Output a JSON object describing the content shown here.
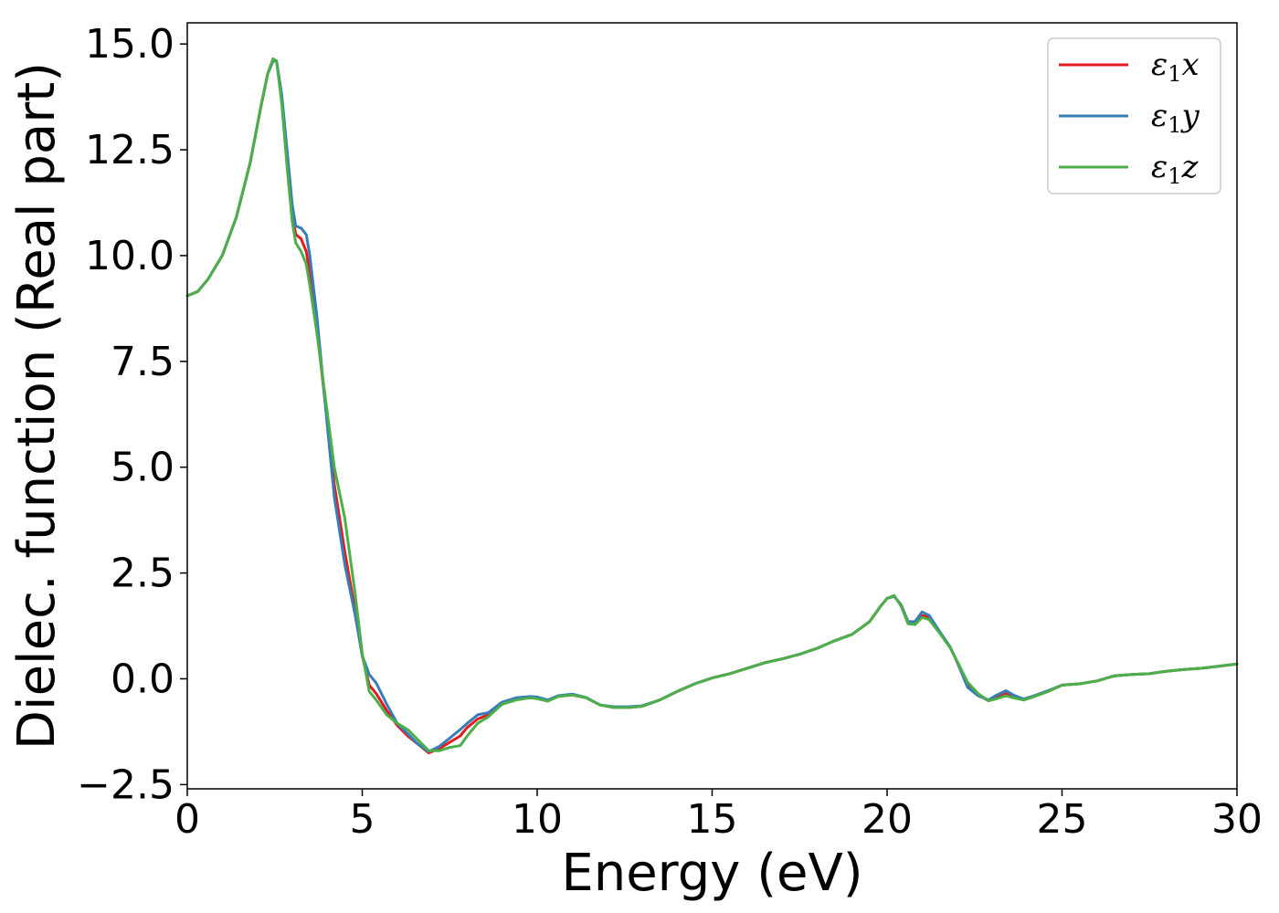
{
  "chart_data": {
    "type": "line",
    "title": "",
    "xlabel": "Energy (eV)",
    "ylabel": "Dielec. function (Real part)",
    "xlim": [
      0,
      30
    ],
    "ylim": [
      -2.6,
      15.5
    ],
    "xticks": [
      0,
      5,
      10,
      15,
      20,
      25,
      30
    ],
    "xtick_labels": [
      "0",
      "5",
      "10",
      "15",
      "20",
      "25",
      "30"
    ],
    "yticks": [
      -2.5,
      0.0,
      2.5,
      5.0,
      7.5,
      10.0,
      12.5,
      15.0
    ],
    "ytick_labels": [
      "−2.5",
      "0.0",
      "2.5",
      "5.0",
      "7.5",
      "10.0",
      "12.5",
      "15.0"
    ],
    "grid": false,
    "legend_position": "top-right",
    "series": [
      {
        "name": "ε₁x",
        "legend_base": "ε",
        "legend_sub": "1",
        "legend_suffix": "x",
        "color": "#e41a1c",
        "x": [
          0,
          0.3,
          0.6,
          1.0,
          1.4,
          1.8,
          2.1,
          2.3,
          2.45,
          2.55,
          2.7,
          2.85,
          3.0,
          3.1,
          3.25,
          3.4,
          3.5,
          3.7,
          4.0,
          4.2,
          4.5,
          4.8,
          5.0,
          5.2,
          5.4,
          5.7,
          6.0,
          6.3,
          6.6,
          6.9,
          7.2,
          7.5,
          7.8,
          8.0,
          8.3,
          8.6,
          9.0,
          9.4,
          9.8,
          10.0,
          10.3,
          10.6,
          11.0,
          11.4,
          11.8,
          12.2,
          12.6,
          13.0,
          13.5,
          14.0,
          14.5,
          15.0,
          15.5,
          16.0,
          16.5,
          17.0,
          17.5,
          18.0,
          18.5,
          19.0,
          19.5,
          19.8,
          20.0,
          20.2,
          20.4,
          20.6,
          20.8,
          21.0,
          21.2,
          21.5,
          21.8,
          22.0,
          22.3,
          22.6,
          22.9,
          23.1,
          23.4,
          23.6,
          23.9,
          24.2,
          24.6,
          25.0,
          25.5,
          26.0,
          26.5,
          27.0,
          27.5,
          28.0,
          28.5,
          29.0,
          29.5,
          30.0
        ],
        "y": [
          9.05,
          9.15,
          9.45,
          10.0,
          10.9,
          12.2,
          13.5,
          14.3,
          14.6,
          14.6,
          13.7,
          12.3,
          11.0,
          10.5,
          10.4,
          10.1,
          9.6,
          8.3,
          6.1,
          4.6,
          3.0,
          1.6,
          0.55,
          -0.15,
          -0.35,
          -0.75,
          -1.1,
          -1.35,
          -1.55,
          -1.75,
          -1.65,
          -1.5,
          -1.35,
          -1.15,
          -0.95,
          -0.85,
          -0.6,
          -0.48,
          -0.45,
          -0.45,
          -0.52,
          -0.42,
          -0.38,
          -0.45,
          -0.62,
          -0.68,
          -0.68,
          -0.65,
          -0.5,
          -0.3,
          -0.12,
          0.02,
          0.12,
          0.25,
          0.38,
          0.47,
          0.58,
          0.72,
          0.9,
          1.05,
          1.35,
          1.7,
          1.9,
          1.95,
          1.75,
          1.35,
          1.3,
          1.5,
          1.45,
          1.1,
          0.75,
          0.4,
          -0.15,
          -0.38,
          -0.52,
          -0.45,
          -0.35,
          -0.42,
          -0.5,
          -0.42,
          -0.3,
          -0.15,
          -0.12,
          -0.05,
          0.07,
          0.1,
          0.12,
          0.18,
          0.22,
          0.25,
          0.3,
          0.35
        ]
      },
      {
        "name": "ε₁y",
        "legend_base": "ε",
        "legend_sub": "1",
        "legend_suffix": "y",
        "color": "#377eb8",
        "x": [
          0,
          0.3,
          0.6,
          1.0,
          1.4,
          1.8,
          2.1,
          2.3,
          2.45,
          2.55,
          2.7,
          2.85,
          3.0,
          3.1,
          3.25,
          3.4,
          3.5,
          3.7,
          4.0,
          4.2,
          4.5,
          4.8,
          5.0,
          5.2,
          5.4,
          5.7,
          6.0,
          6.3,
          6.6,
          6.9,
          7.2,
          7.5,
          7.8,
          8.0,
          8.3,
          8.6,
          9.0,
          9.4,
          9.8,
          10.0,
          10.3,
          10.6,
          11.0,
          11.4,
          11.8,
          12.2,
          12.6,
          13.0,
          13.5,
          14.0,
          14.5,
          15.0,
          15.5,
          16.0,
          16.5,
          17.0,
          17.5,
          18.0,
          18.5,
          19.0,
          19.5,
          19.8,
          20.0,
          20.2,
          20.4,
          20.6,
          20.8,
          21.0,
          21.2,
          21.5,
          21.8,
          22.0,
          22.3,
          22.6,
          22.9,
          23.1,
          23.4,
          23.6,
          23.9,
          24.2,
          24.6,
          25.0,
          25.5,
          26.0,
          26.5,
          27.0,
          27.5,
          28.0,
          28.5,
          29.0,
          29.5,
          30.0
        ],
        "y": [
          9.05,
          9.15,
          9.45,
          10.0,
          10.9,
          12.2,
          13.5,
          14.3,
          14.6,
          14.6,
          13.8,
          12.5,
          11.2,
          10.7,
          10.65,
          10.5,
          10.0,
          8.6,
          6.0,
          4.3,
          2.7,
          1.5,
          0.55,
          0.1,
          -0.1,
          -0.6,
          -1.05,
          -1.3,
          -1.55,
          -1.72,
          -1.6,
          -1.4,
          -1.2,
          -1.05,
          -0.85,
          -0.8,
          -0.55,
          -0.45,
          -0.42,
          -0.43,
          -0.5,
          -0.4,
          -0.36,
          -0.44,
          -0.62,
          -0.66,
          -0.66,
          -0.64,
          -0.5,
          -0.3,
          -0.12,
          0.02,
          0.12,
          0.25,
          0.38,
          0.47,
          0.58,
          0.72,
          0.9,
          1.05,
          1.35,
          1.7,
          1.9,
          1.95,
          1.75,
          1.35,
          1.35,
          1.58,
          1.5,
          1.12,
          0.76,
          0.4,
          -0.2,
          -0.4,
          -0.5,
          -0.4,
          -0.28,
          -0.38,
          -0.48,
          -0.4,
          -0.28,
          -0.15,
          -0.12,
          -0.05,
          0.07,
          0.1,
          0.12,
          0.18,
          0.22,
          0.25,
          0.3,
          0.35
        ]
      },
      {
        "name": "ε₁z",
        "legend_base": "ε",
        "legend_sub": "1",
        "legend_suffix": "z",
        "color": "#4daf4a",
        "x": [
          0,
          0.3,
          0.6,
          1.0,
          1.4,
          1.8,
          2.1,
          2.3,
          2.45,
          2.55,
          2.7,
          2.85,
          3.0,
          3.1,
          3.25,
          3.4,
          3.5,
          3.7,
          4.0,
          4.2,
          4.5,
          4.8,
          5.0,
          5.2,
          5.4,
          5.7,
          6.0,
          6.3,
          6.6,
          6.9,
          7.2,
          7.5,
          7.8,
          8.0,
          8.3,
          8.6,
          9.0,
          9.4,
          9.8,
          10.0,
          10.3,
          10.6,
          11.0,
          11.4,
          11.8,
          12.2,
          12.6,
          13.0,
          13.5,
          14.0,
          14.5,
          15.0,
          15.5,
          16.0,
          16.5,
          17.0,
          17.5,
          18.0,
          18.5,
          19.0,
          19.5,
          19.8,
          20.0,
          20.2,
          20.4,
          20.6,
          20.8,
          21.0,
          21.2,
          21.5,
          21.8,
          22.0,
          22.3,
          22.6,
          22.9,
          23.1,
          23.4,
          23.6,
          23.9,
          24.2,
          24.6,
          25.0,
          25.5,
          26.0,
          26.5,
          27.0,
          27.5,
          28.0,
          28.5,
          29.0,
          29.5,
          30.0
        ],
        "y": [
          9.05,
          9.15,
          9.45,
          10.0,
          10.9,
          12.2,
          13.5,
          14.3,
          14.65,
          14.6,
          13.6,
          12.1,
          10.8,
          10.3,
          10.1,
          9.8,
          9.3,
          8.2,
          6.3,
          5.0,
          3.8,
          2.0,
          0.6,
          -0.3,
          -0.5,
          -0.85,
          -1.05,
          -1.2,
          -1.45,
          -1.7,
          -1.7,
          -1.62,
          -1.58,
          -1.35,
          -1.05,
          -0.9,
          -0.6,
          -0.5,
          -0.45,
          -0.47,
          -0.53,
          -0.42,
          -0.38,
          -0.45,
          -0.62,
          -0.68,
          -0.68,
          -0.65,
          -0.5,
          -0.3,
          -0.12,
          0.02,
          0.12,
          0.25,
          0.38,
          0.47,
          0.58,
          0.72,
          0.9,
          1.05,
          1.35,
          1.7,
          1.9,
          1.97,
          1.72,
          1.3,
          1.28,
          1.45,
          1.4,
          1.08,
          0.74,
          0.42,
          -0.08,
          -0.35,
          -0.52,
          -0.48,
          -0.4,
          -0.45,
          -0.5,
          -0.42,
          -0.3,
          -0.15,
          -0.12,
          -0.05,
          0.07,
          0.1,
          0.12,
          0.18,
          0.22,
          0.25,
          0.3,
          0.35
        ]
      }
    ]
  }
}
